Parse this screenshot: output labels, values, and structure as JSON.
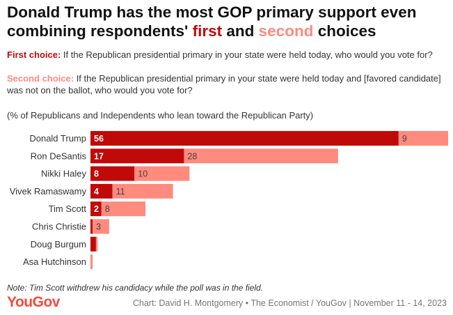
{
  "title": {
    "part1": "Donald Trump has the most GOP primary support even combining respondents' ",
    "first": "first",
    "and": " and ",
    "second": "second",
    "part2": " choices"
  },
  "q1": {
    "label": "First choice:",
    "text": " If the Republican presidential primary in your state were held today, who would you vote for?"
  },
  "q2": {
    "label": "Second choice:",
    "text": " If the Republican presidential primary in your state were held today and [favored candidate] was not on the ballot, who would you vote for?"
  },
  "subtitle": "(% of Republicans and Independents who lean toward the Republican Party)",
  "note": "Note: Tim Scott withdrew his candidacy while the poll was in the field.",
  "logo": "YouGov",
  "credit": "Chart: David H. Montgomery • The Economist / YouGov | November 11 - 14, 2023",
  "colors": {
    "first": "#c00a0a",
    "second": "#ff8a7e"
  },
  "chart_data": {
    "type": "bar",
    "orientation": "horizontal-stacked",
    "categories": [
      "Donald Trump",
      "Ron DeSantis",
      "Nikki Haley",
      "Vivek Ramaswamy",
      "Tim Scott",
      "Chris Christie",
      "Doug Burgum",
      "Asa Hutchinson"
    ],
    "series": [
      {
        "name": "First choice",
        "values": [
          56,
          17,
          8,
          4,
          2,
          0.4,
          1,
          0
        ],
        "labels": [
          "56",
          "17",
          "8",
          "4",
          "2",
          "",
          "",
          ""
        ]
      },
      {
        "name": "Second choice",
        "values": [
          9,
          28,
          10,
          11,
          8,
          3,
          0.3,
          0.4
        ],
        "labels": [
          "9",
          "28",
          "10",
          "11",
          "8",
          "3",
          "",
          ""
        ]
      }
    ],
    "xlim": [
      0,
      65
    ]
  }
}
